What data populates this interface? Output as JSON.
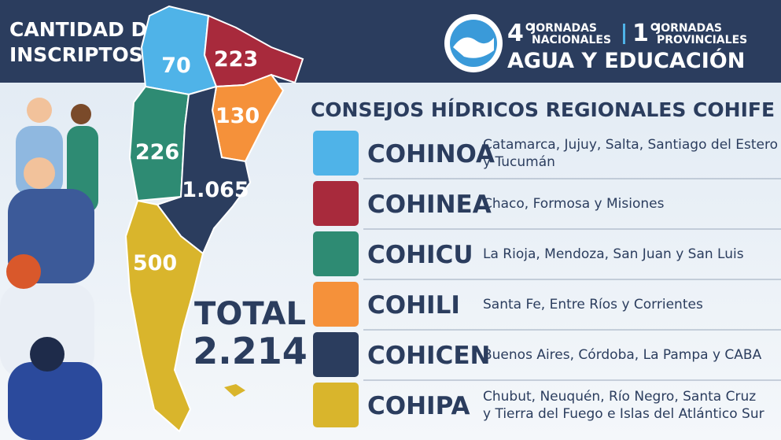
{
  "header": {
    "title_line1": "CANTIDAD DE",
    "title_line2": "INSCRIPTOS",
    "logo": {
      "national_edition": "4°",
      "national_line1": "JORNADAS",
      "national_line2": "NACIONALES",
      "provincial_edition": "1°",
      "provincial_line1": "JORNADAS",
      "provincial_line2": "PROVINCIALES",
      "subtitle": "AGUA Y EDUCACIÓN"
    }
  },
  "map": [
    {
      "count": "70"
    },
    {
      "count": "223"
    },
    {
      "count": "130"
    },
    {
      "count": "226"
    },
    {
      "count": "1.065"
    },
    {
      "count": "500"
    }
  ],
  "total": {
    "label": "TOTAL",
    "value": "2.214"
  },
  "panel": {
    "title": "CONSEJOS HÍDRICOS REGIONALES COHIFE",
    "rows": [
      {
        "name": "COHINOA",
        "color": "#4fb3e8",
        "description": [
          "Catamarca, Jujuy, Salta, Santiago del Estero",
          "y Tucumán"
        ]
      },
      {
        "name": "COHINEA",
        "color": "#a82a3c",
        "description": [
          "Chaco, Formosa y Misiones"
        ]
      },
      {
        "name": "COHICU",
        "color": "#2e8b73",
        "description": [
          "La Rioja, Mendoza, San Juan y San Luis"
        ]
      },
      {
        "name": "COHILI",
        "color": "#f5913a",
        "description": [
          "Santa Fe, Entre Ríos y Corrientes"
        ]
      },
      {
        "name": "COHICEN",
        "color": "#2b3d5e",
        "description": [
          "Buenos Aires, Córdoba, La Pampa y CABA"
        ]
      },
      {
        "name": "COHIPA",
        "color": "#d9b52c",
        "description": [
          "Chubut, Neuquén, Río Negro, Santa Cruz",
          "y Tierra del Fuego e Islas del Atlántico Sur"
        ]
      }
    ]
  }
}
